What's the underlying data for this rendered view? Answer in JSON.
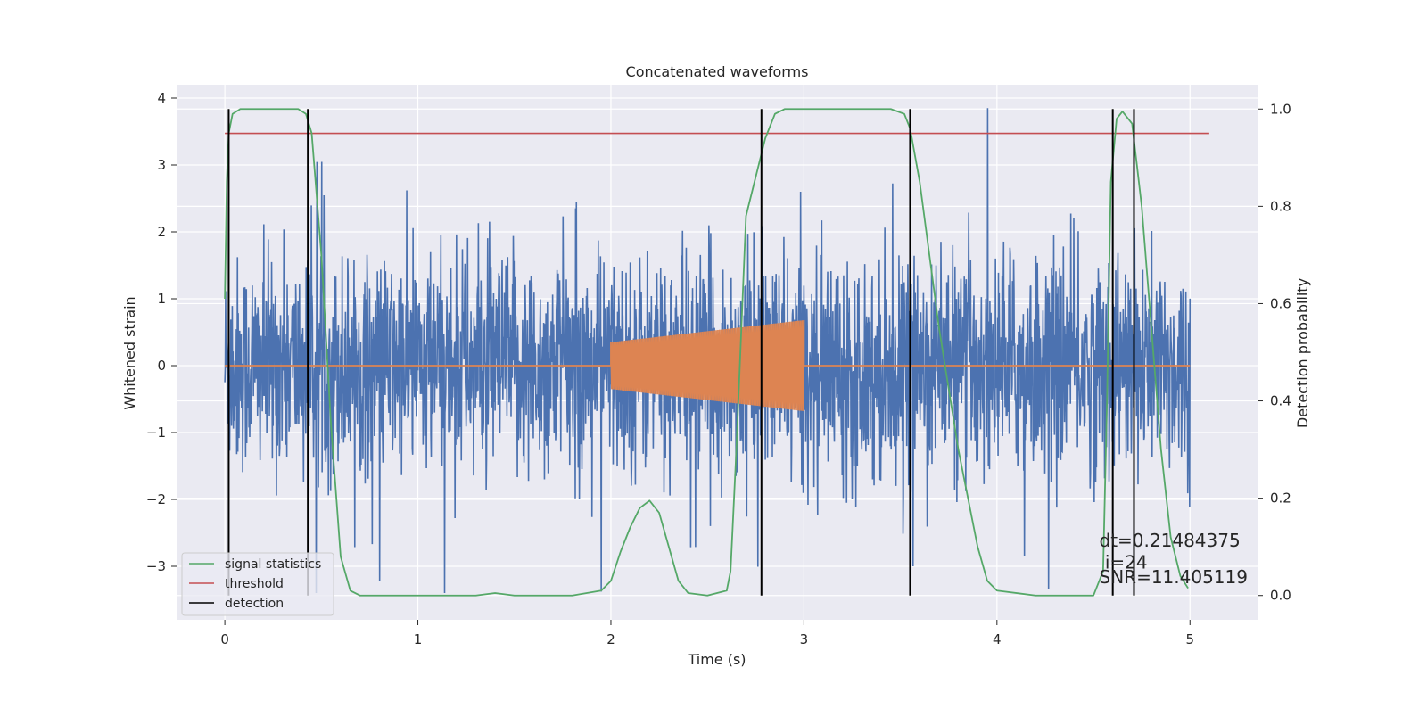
{
  "chart_data": {
    "type": "line",
    "title": "Concatenated waveforms",
    "xlabel": "Time (s)",
    "ylabel": "Whitened strain",
    "y2label": "Detection probability",
    "xlim": [
      -0.25,
      5.35
    ],
    "ylim": [
      -3.8,
      4.2
    ],
    "y2lim": [
      -0.05,
      1.05
    ],
    "xticks": [
      0,
      1,
      2,
      3,
      4,
      5
    ],
    "xtick_labels": [
      "0",
      "1",
      "2",
      "3",
      "4",
      "5"
    ],
    "yticks": [
      4,
      3,
      2,
      1,
      0,
      -1,
      -2,
      -3
    ],
    "ytick_labels": [
      "4",
      "3",
      "2",
      "1",
      "0",
      "−1",
      "−2",
      "−3"
    ],
    "y2ticks": [
      1.0,
      0.8,
      0.6,
      0.4,
      0.2,
      0.0
    ],
    "y2tick_labels": [
      "1.0",
      "0.8",
      "0.6",
      "0.4",
      "0.2",
      "0.0"
    ],
    "grid": true,
    "legend_placement": "lower-left",
    "series": [
      {
        "role": "whitened-strain",
        "color": "#4c72b0",
        "axis": "left",
        "x_range": [
          0,
          5
        ],
        "typical_amplitude": 0.8,
        "max_value": 3.85,
        "min_value": -3.4
      },
      {
        "role": "injected-waveform",
        "color": "#dd8452",
        "axis": "left",
        "x_range": [
          0,
          5
        ],
        "chirp_start": 2.0,
        "chirp_end": 3.0,
        "amplitude_start": 0.35,
        "amplitude_end": 0.68
      },
      {
        "name": "signal statistics",
        "color": "#55a868",
        "axis": "right",
        "x": [
          0.0,
          0.01,
          0.02,
          0.04,
          0.08,
          0.15,
          0.3,
          0.38,
          0.42,
          0.45,
          0.5,
          0.55,
          0.6,
          0.65,
          0.7,
          0.8,
          1.0,
          1.3,
          1.4,
          1.5,
          1.8,
          1.95,
          2.0,
          2.05,
          2.1,
          2.15,
          2.2,
          2.25,
          2.3,
          2.35,
          2.4,
          2.5,
          2.6,
          2.62,
          2.65,
          2.7,
          2.75,
          2.8,
          2.85,
          2.9,
          3.0,
          3.2,
          3.45,
          3.52,
          3.55,
          3.6,
          3.7,
          3.8,
          3.9,
          3.95,
          4.0,
          4.2,
          4.5,
          4.55,
          4.57,
          4.59,
          4.62,
          4.65,
          4.7,
          4.75,
          4.8,
          4.85,
          4.9,
          4.95,
          4.99
        ],
        "values": [
          0.61,
          0.85,
          0.95,
          0.99,
          1.0,
          1.0,
          1.0,
          1.0,
          0.99,
          0.95,
          0.7,
          0.35,
          0.08,
          0.01,
          0.0,
          0.0,
          0.0,
          0.0,
          0.005,
          0.0,
          0.0,
          0.01,
          0.03,
          0.09,
          0.14,
          0.18,
          0.195,
          0.17,
          0.1,
          0.03,
          0.005,
          0.0,
          0.01,
          0.05,
          0.3,
          0.78,
          0.86,
          0.94,
          0.99,
          1.0,
          1.0,
          1.0,
          1.0,
          0.99,
          0.96,
          0.85,
          0.55,
          0.3,
          0.1,
          0.03,
          0.01,
          0.0,
          0.0,
          0.05,
          0.4,
          0.85,
          0.98,
          0.995,
          0.97,
          0.8,
          0.55,
          0.3,
          0.12,
          0.04,
          0.015
        ]
      },
      {
        "name": "threshold",
        "color": "#c44e52",
        "axis": "right",
        "x": [
          0,
          5.1
        ],
        "values": [
          0.95,
          0.95
        ]
      },
      {
        "name": "detection",
        "color": "#000000",
        "axis": "right",
        "x": [
          0.02,
          0.43,
          2.78,
          3.55,
          4.6,
          4.71
        ],
        "ymin": 0.0,
        "ymax": 1.0
      }
    ],
    "annotations": [
      {
        "text": "dt=0.21484375",
        "x": 4.53,
        "y2": 0.1
      },
      {
        "text": " i=24",
        "x": 4.53,
        "y2": 0.055
      },
      {
        "text": "SNR=11.405119",
        "x": 4.53,
        "y2": 0.025
      }
    ]
  }
}
